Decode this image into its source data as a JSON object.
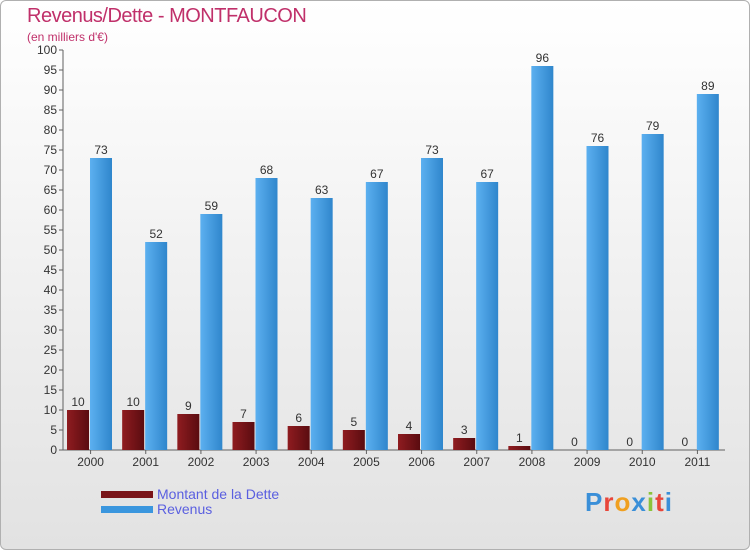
{
  "chart_data": {
    "type": "bar",
    "title": "Revenus/Dette - MONTFAUCON",
    "subtitle": "(en milliers d'€)",
    "categories": [
      "2000",
      "2001",
      "2002",
      "2003",
      "2004",
      "2005",
      "2006",
      "2007",
      "2008",
      "2009",
      "2010",
      "2011"
    ],
    "series": [
      {
        "name": "Montant de la Dette",
        "color": "#7a1418",
        "values": [
          10,
          10,
          9,
          7,
          6,
          5,
          4,
          3,
          1,
          0,
          0,
          0
        ]
      },
      {
        "name": "Revenus",
        "color": "#3a96de",
        "values": [
          73,
          52,
          59,
          68,
          63,
          67,
          73,
          67,
          96,
          76,
          79,
          89
        ]
      }
    ],
    "ylim": [
      0,
      100
    ],
    "yticks": [
      0,
      5,
      10,
      15,
      20,
      25,
      30,
      35,
      40,
      45,
      50,
      55,
      60,
      65,
      70,
      75,
      80,
      85,
      90,
      95,
      100
    ],
    "grid": false,
    "legend_position": "bottom-left",
    "xlabel": "",
    "ylabel": ""
  },
  "brand": {
    "text": "Proxiti",
    "letter_colors": [
      "#3a8fd8",
      "#e8463a",
      "#f0a020",
      "#3a8fd8",
      "#8ac43a",
      "#e8463a",
      "#3a8fd8"
    ]
  }
}
